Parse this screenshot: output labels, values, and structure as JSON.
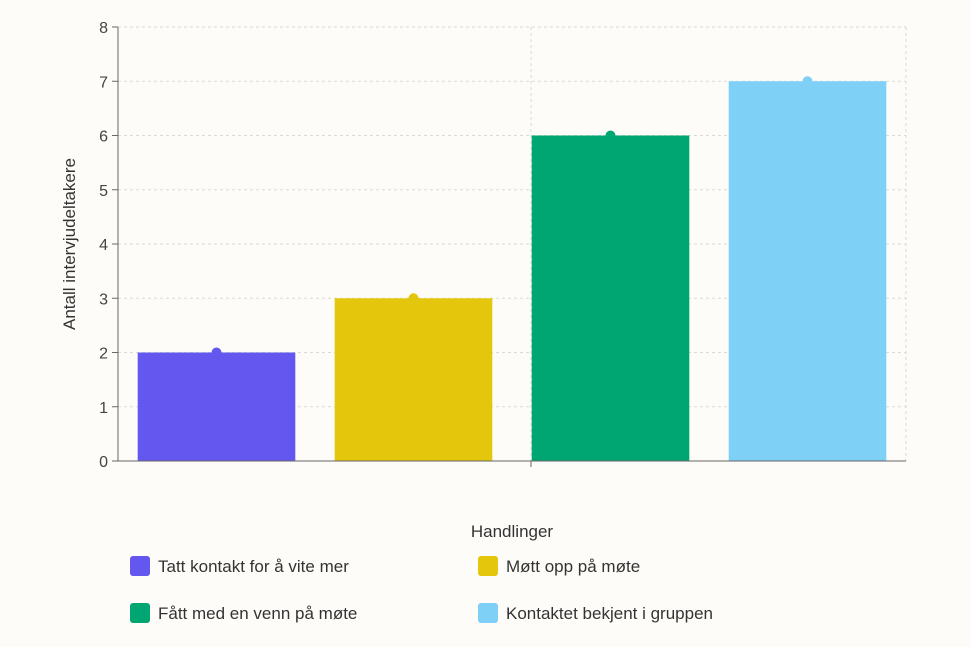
{
  "chart_data": {
    "type": "bar",
    "categories": [
      "Tatt kontakt for å vite mer",
      "Møtt opp på møte",
      "Fått med en venn på møte",
      "Kontaktet bekjent i gruppen"
    ],
    "values": [
      2,
      3,
      6,
      7
    ],
    "colors": [
      "#6457f0",
      "#e4c70c",
      "#00a672",
      "#7ed0f7"
    ],
    "xlabel": "Handlinger",
    "ylabel": "Antall intervjudeltakere",
    "ylim": [
      0,
      8
    ],
    "yticks": [
      "0",
      "1",
      "2",
      "3",
      "4",
      "5",
      "6",
      "7",
      "8"
    ],
    "grid": true,
    "legend_position": "bottom"
  },
  "legend": {
    "items": [
      "Tatt kontakt for å vite mer",
      "Møtt opp på møte",
      "Fått med en venn på møte",
      "Kontaktet bekjent i gruppen"
    ]
  },
  "axes": {
    "xlabel": "Handlinger",
    "ylabel": "Antall intervjudeltakere"
  }
}
